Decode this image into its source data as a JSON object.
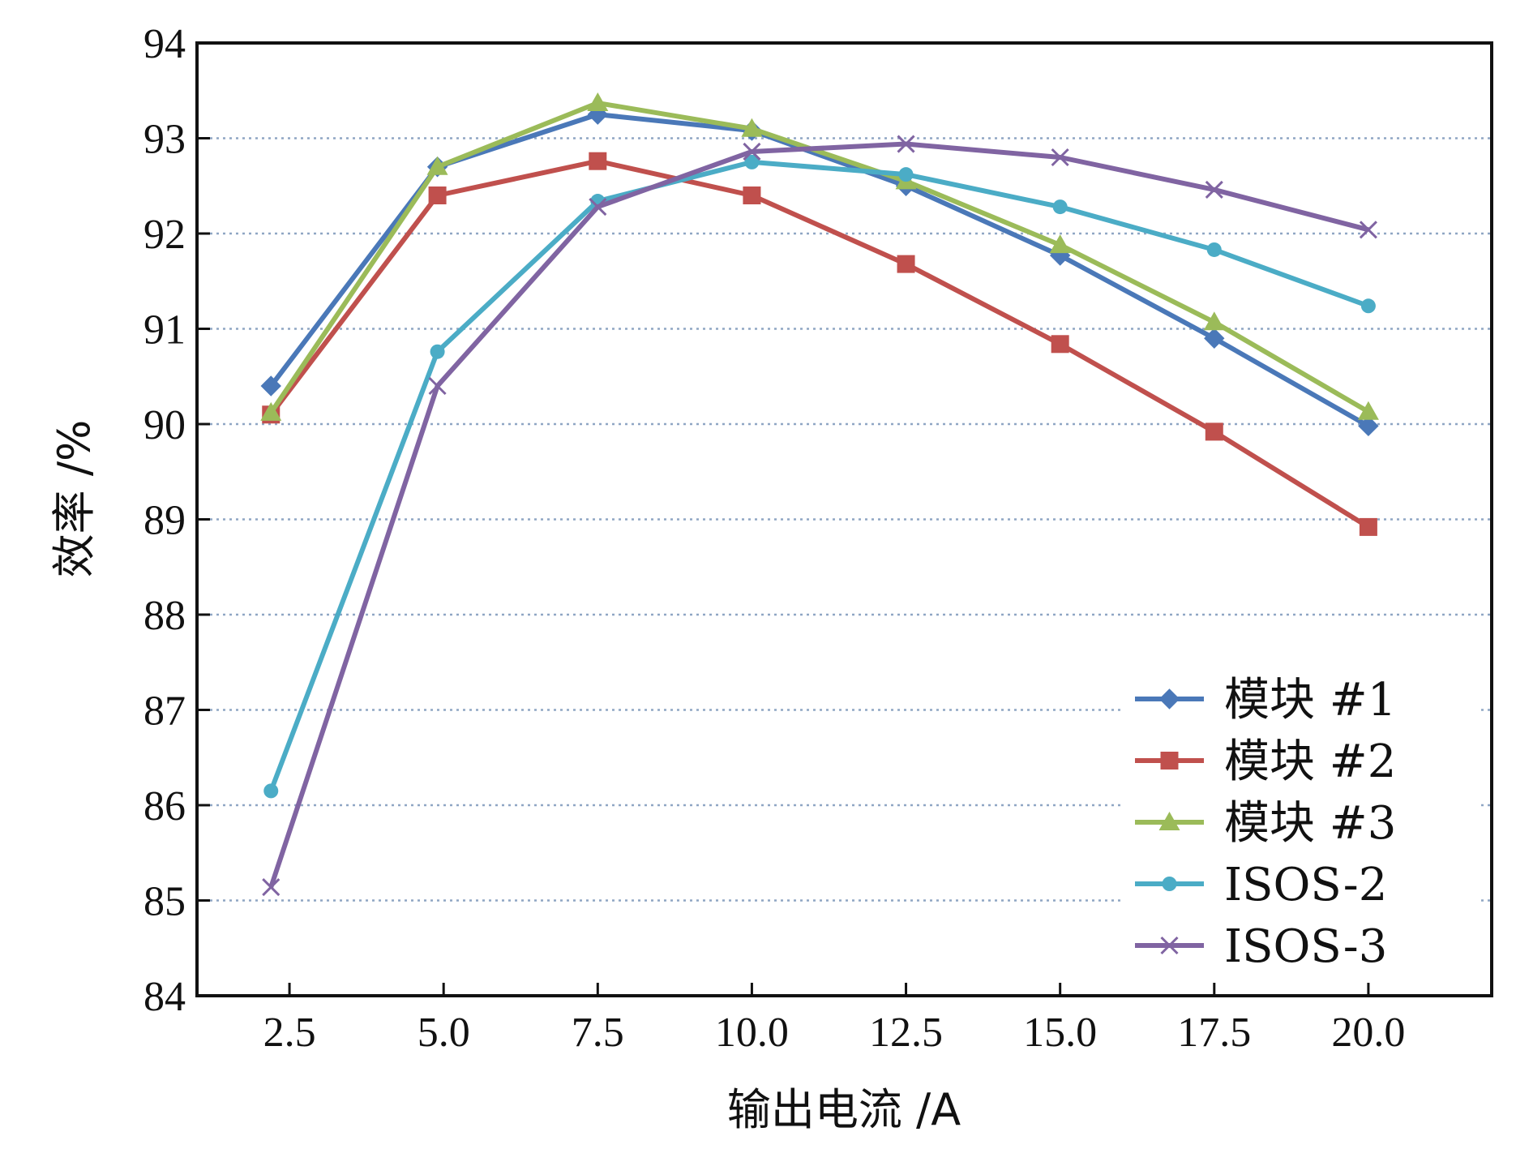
{
  "chart_data": {
    "type": "line",
    "xlabel": "输出电流 /A",
    "ylabel": "效率 /%",
    "xlim": [
      1.0,
      22.0
    ],
    "ylim": [
      84,
      94
    ],
    "x_ticks": [
      2.5,
      5.0,
      7.5,
      10.0,
      12.5,
      15.0,
      17.5,
      20.0
    ],
    "x_tick_labels": [
      "2.5",
      "5.0",
      "7.5",
      "10.0",
      "12.5",
      "15.0",
      "17.5",
      "20.0"
    ],
    "y_ticks": [
      84,
      85,
      86,
      87,
      88,
      89,
      90,
      91,
      92,
      93,
      94
    ],
    "y_tick_labels": [
      "84",
      "85",
      "86",
      "87",
      "88",
      "89",
      "90",
      "91",
      "92",
      "93",
      "94"
    ],
    "grid": "horizontal dotted",
    "legend_position": "bottom-right",
    "series": [
      {
        "name": "模块 #1",
        "color": "#4a78b8",
        "marker": "diamond",
        "x": [
          2.2,
          4.9,
          7.5,
          10.0,
          12.5,
          15.0,
          17.5,
          20.0
        ],
        "y": [
          90.4,
          92.7,
          93.25,
          93.08,
          92.5,
          91.77,
          90.9,
          89.98
        ]
      },
      {
        "name": "模块 #2",
        "color": "#c0504d",
        "marker": "square",
        "x": [
          2.2,
          4.9,
          7.5,
          10.0,
          12.5,
          15.0,
          17.5,
          20.0
        ],
        "y": [
          90.1,
          92.4,
          92.76,
          92.4,
          91.68,
          90.84,
          89.92,
          88.92
        ]
      },
      {
        "name": "模块 #3",
        "color": "#9bbb59",
        "marker": "triangle",
        "x": [
          2.2,
          4.9,
          7.5,
          10.0,
          12.5,
          15.0,
          17.5,
          20.0
        ],
        "y": [
          90.12,
          92.7,
          93.37,
          93.1,
          92.55,
          91.88,
          91.07,
          90.13
        ]
      },
      {
        "name": "ISOS-2",
        "color": "#4bacc6",
        "marker": "circle",
        "x": [
          2.2,
          4.9,
          7.5,
          10.0,
          12.5,
          15.0,
          17.5,
          20.0
        ],
        "y": [
          86.15,
          90.76,
          92.34,
          92.75,
          92.62,
          92.28,
          91.83,
          91.24
        ]
      },
      {
        "name": "ISOS-3",
        "color": "#8064a2",
        "marker": "x",
        "x": [
          2.2,
          4.9,
          7.5,
          10.0,
          12.5,
          15.0,
          17.5,
          20.0
        ],
        "y": [
          85.14,
          90.4,
          92.28,
          92.86,
          92.94,
          92.8,
          92.46,
          92.04
        ]
      }
    ]
  }
}
